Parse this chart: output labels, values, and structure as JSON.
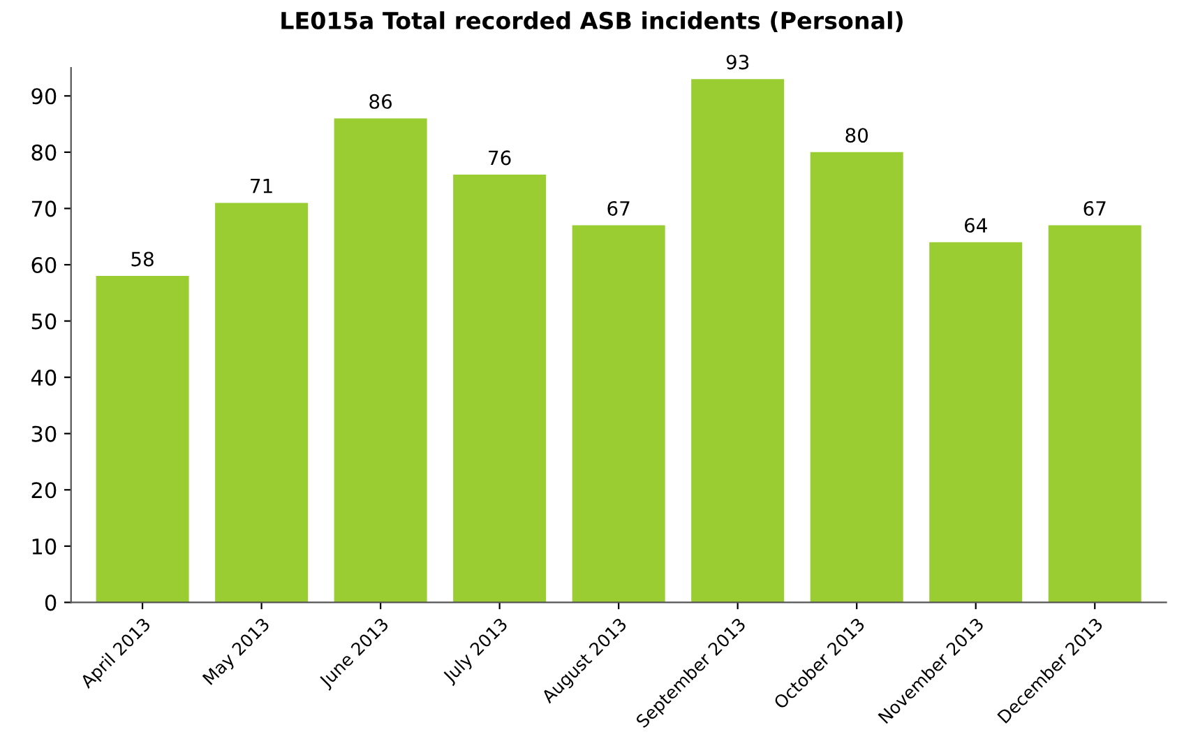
{
  "chart_data": {
    "type": "bar",
    "title": "LE015a Total recorded ASB incidents (Personal)",
    "categories": [
      "April 2013",
      "May 2013",
      "June 2013",
      "July 2013",
      "August 2013",
      "September 2013",
      "October 2013",
      "November 2013",
      "December 2013"
    ],
    "series": [
      {
        "color": "#9acd32",
        "values": [
          58,
          71,
          86,
          76,
          67,
          93,
          80,
          64,
          67
        ]
      }
    ],
    "ylim": [
      0,
      95
    ],
    "yticks": [
      0,
      10,
      20,
      30,
      40,
      50,
      60,
      70,
      80,
      90
    ],
    "grid": false,
    "data_labels": true
  }
}
